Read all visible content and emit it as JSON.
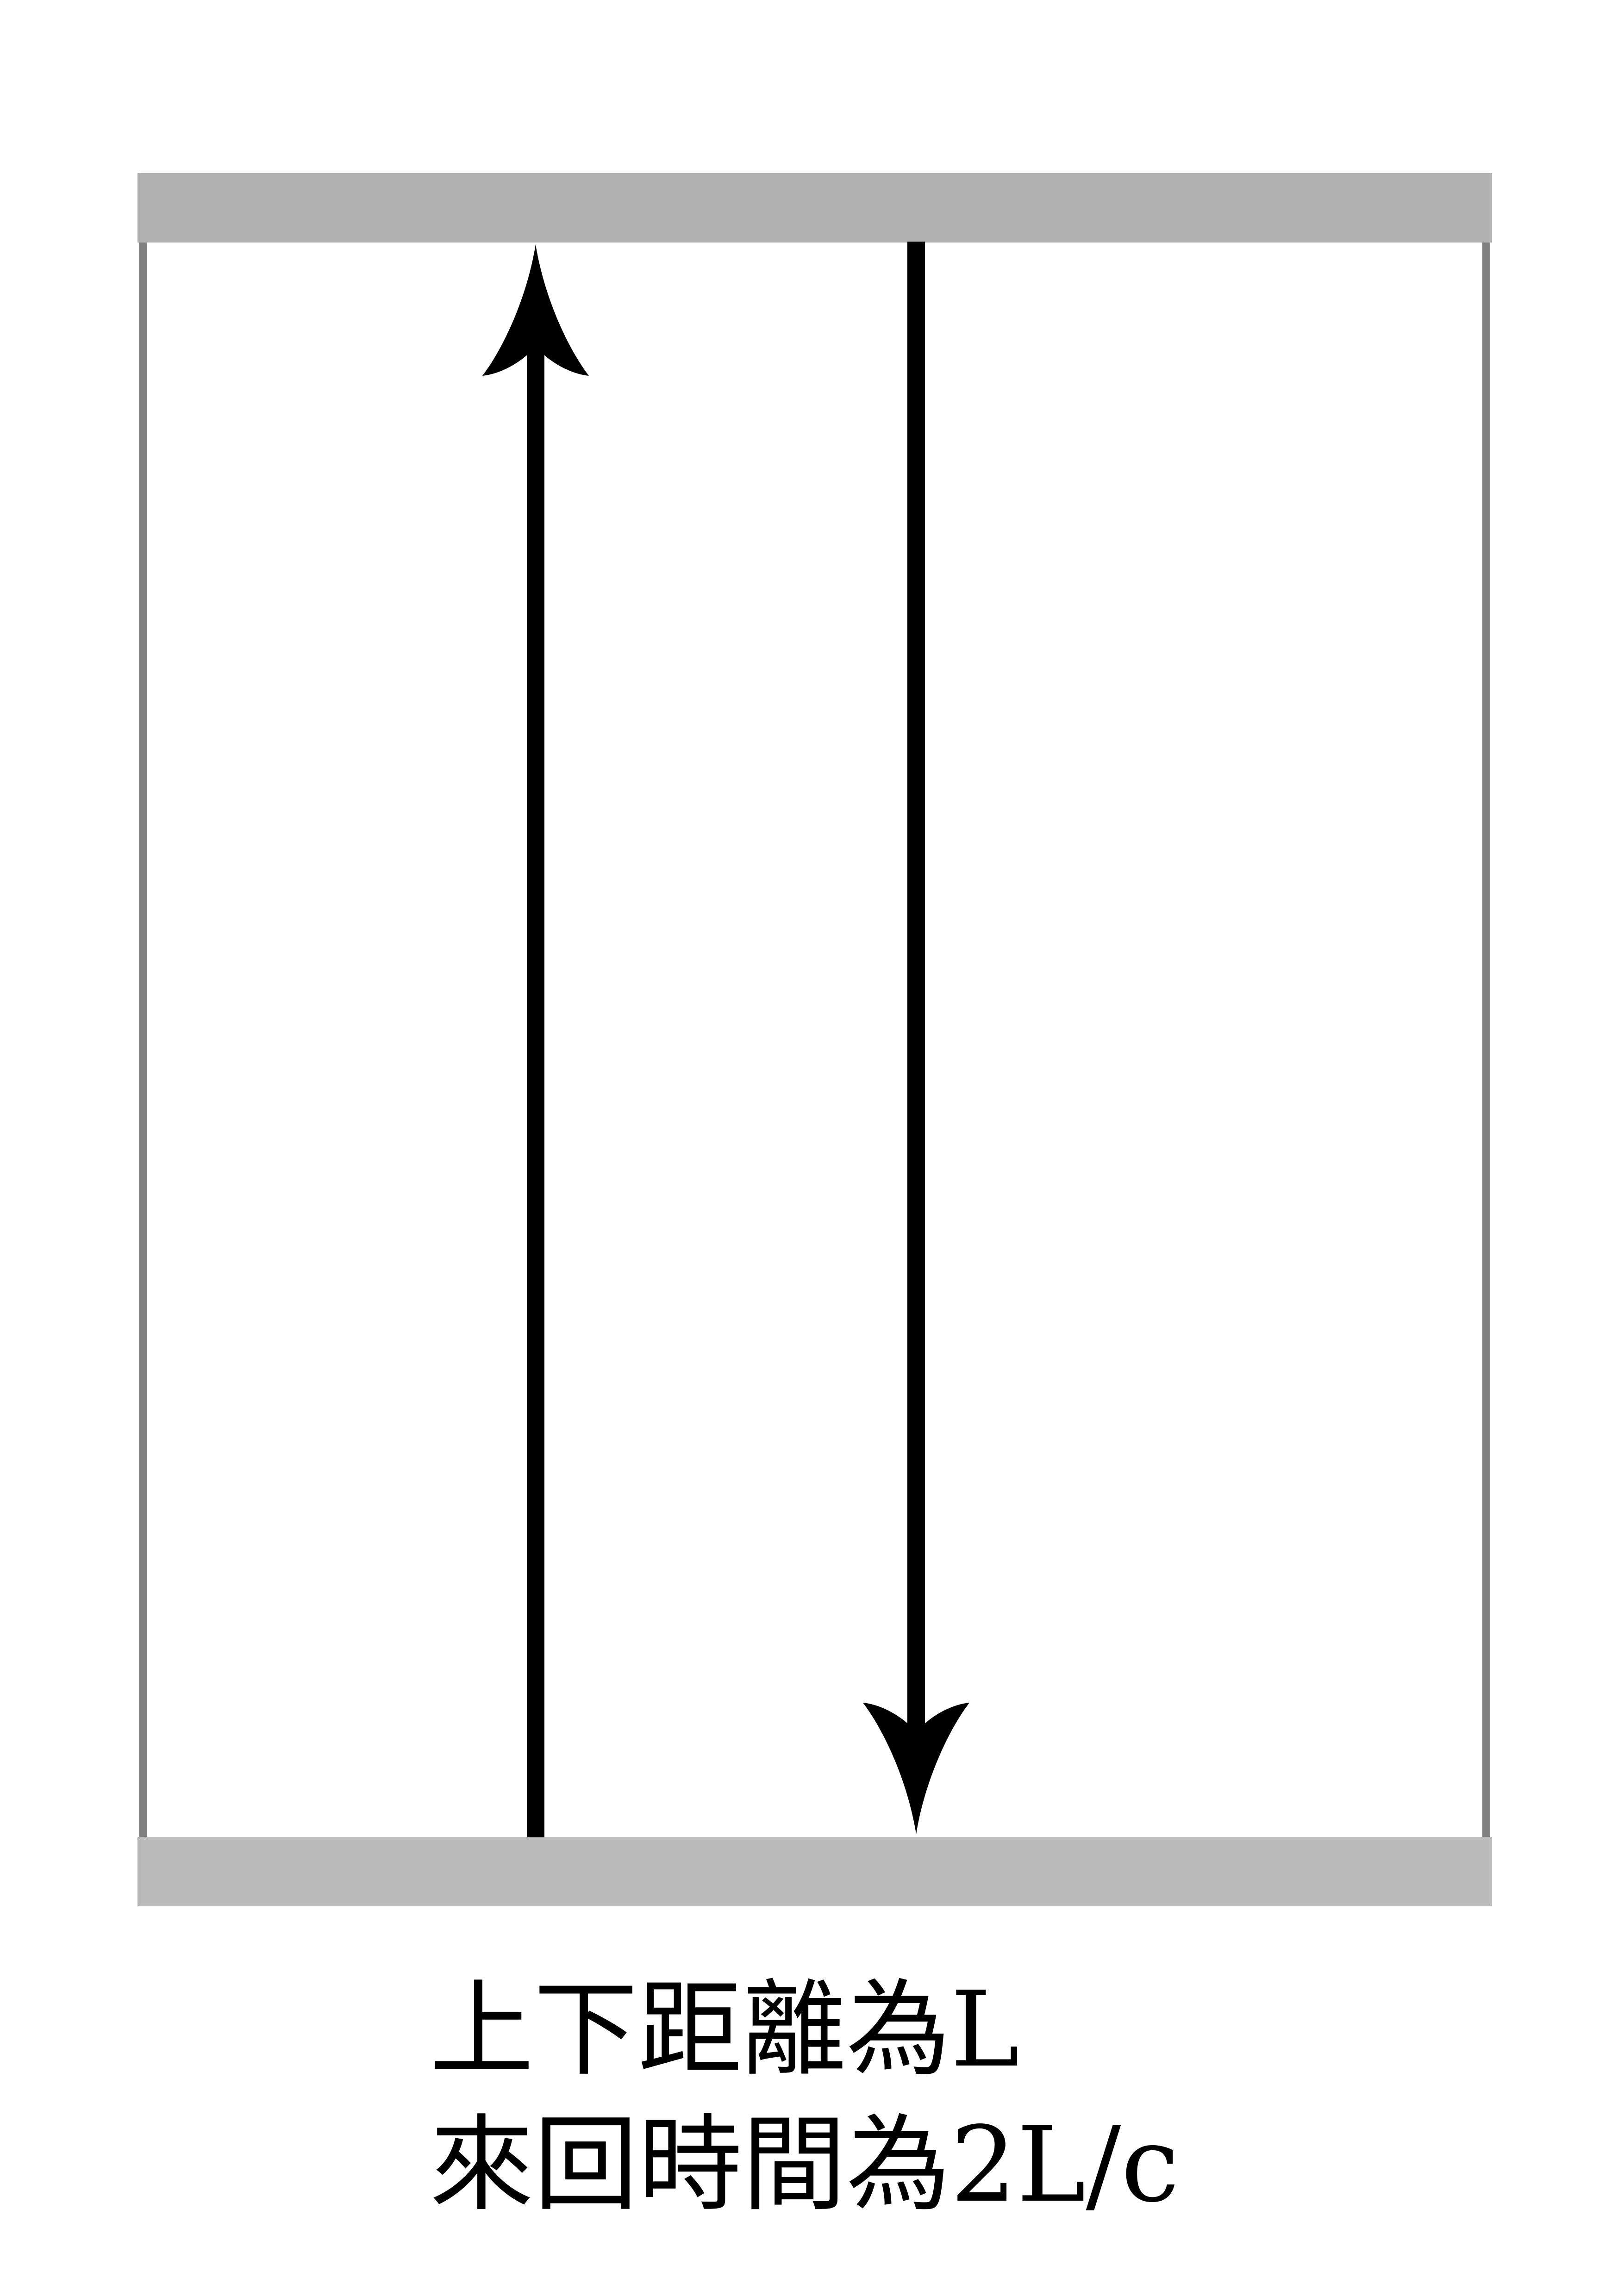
{
  "caption": {
    "line1": "上下距離為L",
    "line2": "來回時間為2L/c"
  },
  "colors": {
    "mirror": "#b5b5b5",
    "side_wall": "#808080",
    "arrow": "#000000",
    "background": "#ffffff"
  },
  "arrows": {
    "up": "upward",
    "down": "downward"
  }
}
